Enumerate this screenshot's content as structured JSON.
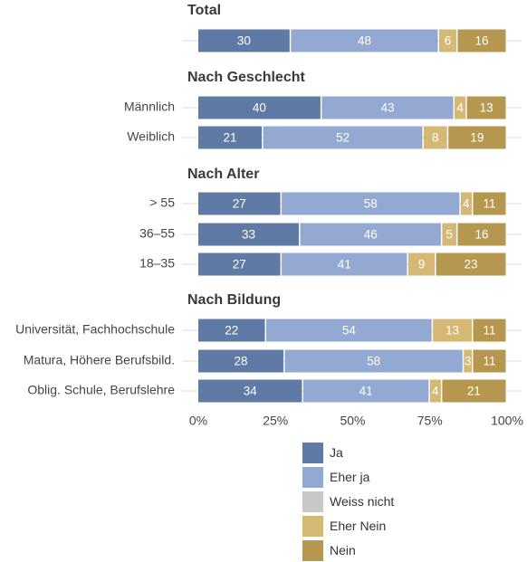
{
  "colors": {
    "ja": "#5f7aa5",
    "eher_ja": "#93a9d1",
    "weiss_nicht": "#c8c8c8",
    "eher_nein": "#d6b875",
    "nein": "#b69750"
  },
  "chart_data": {
    "type": "bar",
    "orientation": "horizontal",
    "stacked": true,
    "xlim": [
      0,
      100
    ],
    "x_ticks": [
      "0%",
      "25%",
      "50%",
      "75%",
      "100%"
    ],
    "series": [
      {
        "name": "Ja",
        "color_key": "ja"
      },
      {
        "name": "Eher ja",
        "color_key": "eher_ja"
      },
      {
        "name": "Weiss nicht",
        "color_key": "weiss_nicht"
      },
      {
        "name": "Eher Nein",
        "color_key": "eher_nein"
      },
      {
        "name": "Nein",
        "color_key": "nein"
      }
    ],
    "groups": [
      {
        "title": "Total",
        "rows": [
          {
            "label": "",
            "values": [
              30,
              48,
              0,
              6,
              16
            ]
          }
        ]
      },
      {
        "title": "Nach Geschlecht",
        "rows": [
          {
            "label": "Männlich",
            "values": [
              40,
              43,
              0,
              4,
              13
            ]
          },
          {
            "label": "Weiblich",
            "values": [
              21,
              52,
              0,
              8,
              19
            ]
          }
        ]
      },
      {
        "title": "Nach Alter",
        "rows": [
          {
            "label": "> 55",
            "values": [
              27,
              58,
              0,
              4,
              11
            ]
          },
          {
            "label": "36–55",
            "values": [
              33,
              46,
              0,
              5,
              16
            ]
          },
          {
            "label": "18–35",
            "values": [
              27,
              41,
              0,
              9,
              23
            ]
          }
        ]
      },
      {
        "title": "Nach Bildung",
        "rows": [
          {
            "label": "Universität, Fachhochschule",
            "values": [
              22,
              54,
              0,
              13,
              11
            ]
          },
          {
            "label": "Matura, Höhere Berufsbild.",
            "values": [
              28,
              58,
              0,
              3,
              11
            ]
          },
          {
            "label": "Oblig. Schule, Berufslehre",
            "values": [
              34,
              41,
              0,
              4,
              21
            ]
          }
        ]
      }
    ],
    "legend_position": "bottom"
  }
}
